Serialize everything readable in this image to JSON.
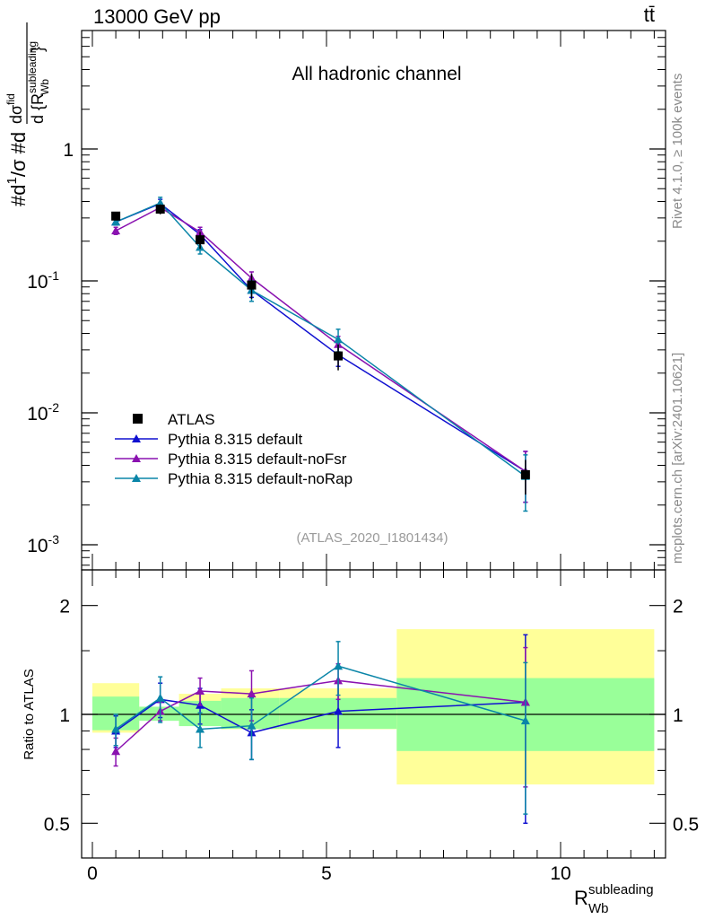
{
  "header": {
    "energy_label": "13000 GeV pp",
    "process_label": "tt̄"
  },
  "side_labels": {
    "rivet": "Rivet 4.1.0, ≥ 100k events",
    "mcplots": "mcplots.cern.ch [arXiv:2401.10621]"
  },
  "chart_data": {
    "type": "line",
    "title": "All hadronic channel",
    "analysis_tag": "(ATLAS_2020_I1801434)",
    "ylabel_main": "#d 1/σ #d dσ^{fid} / d{R_Wb^subleading}",
    "ylabel_ratio": "Ratio to ATLAS",
    "xlabel": "R_Wb subleading",
    "xlim": [
      -0.3,
      12.2
    ],
    "ylim_main": [
      0.0007,
      8
    ],
    "ylim_ratio": [
      0.4,
      2.3
    ],
    "x_ticks": [
      "0",
      "5",
      "10"
    ],
    "y_ticks_main": [
      "10^-3",
      "10^-2",
      "10^-1",
      "1"
    ],
    "y_ticks_ratio": [
      "0.5",
      "1",
      "2"
    ],
    "bins": [
      {
        "lo": 0.0,
        "hi": 1.0
      },
      {
        "lo": 1.0,
        "hi": 1.85
      },
      {
        "lo": 1.85,
        "hi": 2.75
      },
      {
        "lo": 2.75,
        "hi": 4.0
      },
      {
        "lo": 4.0,
        "hi": 6.5
      },
      {
        "lo": 6.5,
        "hi": 12.0
      }
    ],
    "x": [
      0.5,
      1.45,
      2.3,
      3.4,
      5.25,
      9.25
    ],
    "data": {
      "name": "ATLAS",
      "color": "#000000",
      "values": [
        0.31,
        0.35,
        0.205,
        0.093,
        0.027,
        0.0034
      ],
      "errors": [
        0.02,
        0.03,
        0.03,
        0.02,
        0.006,
        0.001
      ],
      "band_stat": [
        0.12,
        0.05,
        0.09,
        0.11,
        0.11,
        0.26
      ],
      "band_total": [
        0.22,
        0.05,
        0.14,
        0.18,
        0.18,
        0.72
      ]
    },
    "series": [
      {
        "name": "Pythia 8.315 default",
        "color": "#1010d0",
        "marker": "triangle",
        "values": [
          0.28,
          0.385,
          0.225,
          0.085,
          0.0275,
          0.0036
        ],
        "errors": [
          0.015,
          0.03,
          0.02,
          0.01,
          0.005,
          0.0015
        ]
      },
      {
        "name": "Pythia 8.315 default-noFsr",
        "color": "#8a12b0",
        "marker": "triangle",
        "values": [
          0.24,
          0.36,
          0.235,
          0.105,
          0.033,
          0.0036
        ],
        "errors": [
          0.015,
          0.03,
          0.02,
          0.012,
          0.005,
          0.0015
        ]
      },
      {
        "name": "Pythia 8.315 default-noRap",
        "color": "#0a85a8",
        "marker": "triangle",
        "values": [
          0.28,
          0.39,
          0.18,
          0.085,
          0.036,
          0.0033
        ],
        "errors": [
          0.015,
          0.04,
          0.02,
          0.015,
          0.007,
          0.0015
        ]
      }
    ],
    "ratios": [
      {
        "name": "Pythia 8.315 default",
        "values": [
          0.9,
          1.1,
          1.06,
          0.89,
          1.02,
          1.08
        ],
        "errors": [
          0.09,
          0.12,
          0.12,
          0.14,
          0.21,
          0.58
        ]
      },
      {
        "name": "Pythia 8.315 default-noFsr",
        "values": [
          0.79,
          1.02,
          1.16,
          1.14,
          1.24,
          1.08
        ],
        "errors": [
          0.07,
          0.06,
          0.1,
          0.18,
          0.14,
          0.45
        ]
      },
      {
        "name": "Pythia 8.315 default-noRap",
        "values": [
          0.91,
          1.11,
          0.91,
          0.93,
          1.36,
          0.96
        ],
        "errors": [
          0.09,
          0.16,
          0.1,
          0.18,
          0.23,
          0.43
        ]
      }
    ]
  }
}
